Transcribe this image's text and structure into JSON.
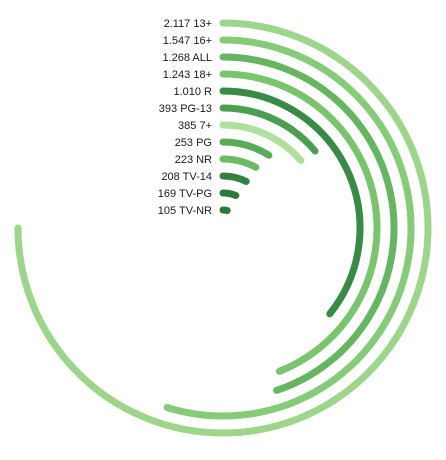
{
  "chart_data": {
    "type": "radial-bar",
    "title": "",
    "max_value": 2117,
    "items": [
      {
        "label": "2.117 13+",
        "category": "13+",
        "value": 2117,
        "color": "#9dd68a"
      },
      {
        "label": "1.547 16+",
        "category": "16+",
        "value": 1547,
        "color": "#86cc78"
      },
      {
        "label": "1.268 ALL",
        "category": "ALL",
        "value": 1268,
        "color": "#66b661"
      },
      {
        "label": "1.243 18+",
        "category": "18+",
        "value": 1243,
        "color": "#7ac46e"
      },
      {
        "label": "1.010 R",
        "category": "R",
        "value": 1010,
        "color": "#3a8a47"
      },
      {
        "label": "393 PG-13",
        "category": "PG-13",
        "value": 393,
        "color": "#4e9e52"
      },
      {
        "label": "385 7+",
        "category": "7+",
        "value": 385,
        "color": "#b0e09c"
      },
      {
        "label": "253 PG",
        "category": "PG",
        "value": 253,
        "color": "#5aab58"
      },
      {
        "label": "223 NR",
        "category": "NR",
        "value": 223,
        "color": "#6cbb66"
      },
      {
        "label": "208 TV-14",
        "category": "TV-14",
        "value": 208,
        "color": "#338244"
      },
      {
        "label": "169 TV-PG",
        "category": "TV-PG",
        "value": 169,
        "color": "#2c7a3e"
      },
      {
        "label": "105 TV-NR",
        "category": "TV-NR",
        "value": 105,
        "color": "#2a7a3d"
      }
    ]
  }
}
